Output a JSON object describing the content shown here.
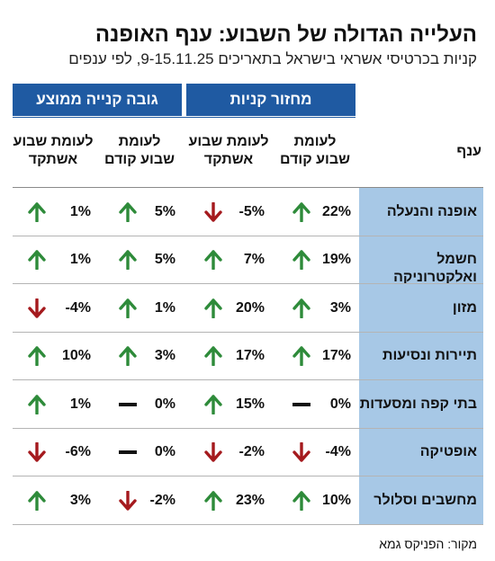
{
  "title": "העלייה הגדולה של השבוע: ענף האופנה",
  "subtitle": "קניות בכרטיסי אשראי בישראל בתאריכים 9-15.11.25, לפי ענפים",
  "group_headers": {
    "sales": "מחזור קניות",
    "avg_purchase": "גובה קנייה ממוצע"
  },
  "column_headers": {
    "branch": "ענף",
    "vs_prev_week_line1": "לעומת",
    "vs_prev_week_line2": "שבוע קודם",
    "vs_last_year_line1": "לעומת שבוע",
    "vs_last_year_line2": "אשתקד"
  },
  "source": "מקור: הפניקס גמא",
  "colors": {
    "header_blue": "#1f5aa2",
    "label_bg": "#a7c8e6",
    "up": "#2e8b3a",
    "down": "#a51a1e",
    "flat": "#111111"
  },
  "chart_data": {
    "type": "table",
    "title": "העלייה הגדולה של השבוע: ענף האופנה",
    "subtitle": "קניות בכרטיסי אשראי בישראל בתאריכים 9-15.11.25, לפי ענפים",
    "columns": [
      "מחזור קניות – לעומת שבוע קודם",
      "מחזור קניות – לעומת שבוע אשתקד",
      "גובה קנייה ממוצע – לעומת שבוע קודם",
      "גובה קנייה ממוצע – לעומת שבוע אשתקד"
    ],
    "rows": [
      {
        "branch": "אופנה והנעלה",
        "values": [
          "22%",
          "-5%",
          "5%",
          "1%"
        ],
        "trend": [
          "up",
          "down",
          "up",
          "up"
        ]
      },
      {
        "branch": "חשמל ואלקטרוניקה",
        "values": [
          "19%",
          "7%",
          "5%",
          "1%"
        ],
        "trend": [
          "up",
          "up",
          "up",
          "up"
        ]
      },
      {
        "branch": "מזון",
        "values": [
          "3%",
          "20%",
          "1%",
          "-4%"
        ],
        "trend": [
          "up",
          "up",
          "up",
          "down"
        ]
      },
      {
        "branch": "תיירות ונסיעות",
        "values": [
          "17%",
          "17%",
          "3%",
          "10%"
        ],
        "trend": [
          "up",
          "up",
          "up",
          "up"
        ]
      },
      {
        "branch": "בתי קפה ומסעדות",
        "values": [
          "0%",
          "15%",
          "0%",
          "1%"
        ],
        "trend": [
          "flat",
          "up",
          "flat",
          "up"
        ]
      },
      {
        "branch": "אופטיקה",
        "values": [
          "-4%",
          "-2%",
          "0%",
          "-6%"
        ],
        "trend": [
          "down",
          "down",
          "flat",
          "down"
        ]
      },
      {
        "branch": "מחשבים וסלולר",
        "values": [
          "10%",
          "23%",
          "-2%",
          "3%"
        ],
        "trend": [
          "up",
          "up",
          "down",
          "up"
        ]
      }
    ]
  }
}
